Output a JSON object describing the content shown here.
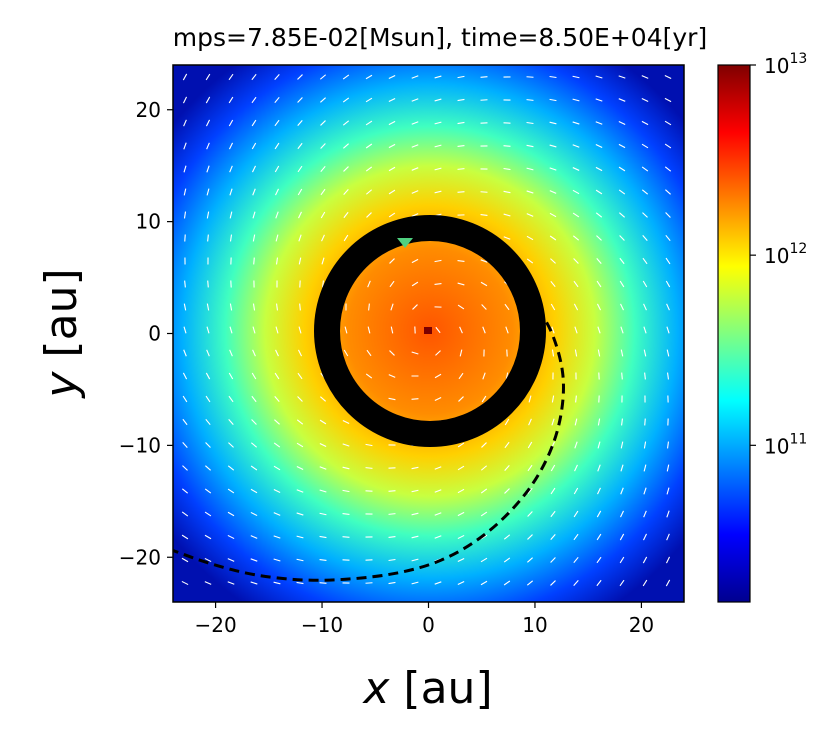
{
  "chart_data": {
    "type": "heatmap",
    "title": "mps=7.85E-02[Msun], time=8.50E+04[yr]",
    "xlabel_var": "x",
    "xlabel_unit": "[au]",
    "ylabel_var": "y",
    "ylabel_unit": "[au]",
    "xlim": [
      -24,
      24
    ],
    "ylim": [
      -24,
      24
    ],
    "xticks": [
      {
        "value": -20,
        "label": "−20"
      },
      {
        "value": -10,
        "label": "−10"
      },
      {
        "value": 0,
        "label": "0"
      },
      {
        "value": 10,
        "label": "10"
      },
      {
        "value": 20,
        "label": "20"
      }
    ],
    "yticks": [
      {
        "value": 20,
        "label": "20"
      },
      {
        "value": 10,
        "label": "10"
      },
      {
        "value": 0,
        "label": "0"
      },
      {
        "value": -10,
        "label": "−10"
      },
      {
        "value": -20,
        "label": "−20"
      }
    ],
    "colorbar": {
      "scale": "log",
      "range": [
        15000000000.0,
        10000000000000.0
      ],
      "colormap": "jet",
      "ticks": [
        {
          "value": 10000000000000.0,
          "base": "10",
          "exp": "13"
        },
        {
          "value": 1000000000000.0,
          "base": "10",
          "exp": "12"
        },
        {
          "value": 100000000000.0,
          "base": "10",
          "exp": "11"
        }
      ]
    },
    "field": {
      "ring_radius_au": 9.5,
      "ring_color": "#000000",
      "inner_disk_color": "#ff5500"
    },
    "dashed_spiral": [
      [
        9.0,
        3.0
      ],
      [
        11.0,
        1.5
      ],
      [
        12.4,
        -2.0
      ],
      [
        12.8,
        -5.0
      ],
      [
        12.2,
        -8.8
      ],
      [
        10.6,
        -12.4
      ],
      [
        8.2,
        -15.5
      ],
      [
        5.0,
        -18.3
      ],
      [
        1.2,
        -20.4
      ],
      [
        -3.0,
        -21.5
      ],
      [
        -7.5,
        -22.0
      ],
      [
        -12.0,
        -22.1
      ],
      [
        -16.5,
        -21.6
      ],
      [
        -20.5,
        -20.6
      ],
      [
        -24.0,
        -19.4
      ]
    ]
  }
}
